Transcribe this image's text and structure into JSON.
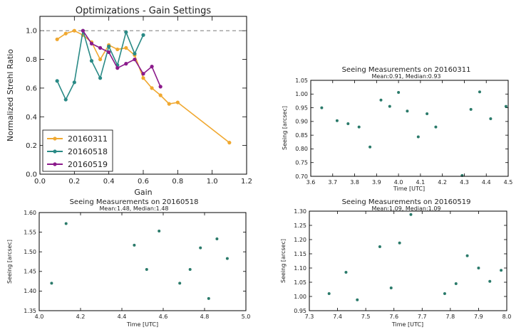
{
  "colors": {
    "s20160311": "#f0a830",
    "s20160518": "#2a8a86",
    "s20160519": "#8b1a8b",
    "ref_line": "#888888",
    "scatter": "#2a7a6a"
  },
  "chart_data": [
    {
      "id": "gain",
      "type": "line",
      "title": "Optimizations - Gain Settings",
      "xlabel": "Gain",
      "ylabel": "Normalized Strehl Ratio",
      "xlim": [
        0.0,
        1.2
      ],
      "ylim": [
        0.0,
        1.1
      ],
      "xticks": [
        0.0,
        0.2,
        0.4,
        0.6,
        0.8,
        1.0,
        1.2
      ],
      "xtick_labels": [
        "0.0",
        "0.2",
        "0.4",
        "0.6",
        "0.8",
        "1.0",
        "1.2"
      ],
      "yticks": [
        0.0,
        0.2,
        0.4,
        0.6,
        0.8,
        1.0
      ],
      "ytick_labels": [
        "0.0",
        "0.2",
        "0.4",
        "0.6",
        "0.8",
        "1.0"
      ],
      "reference_line_y": 1.0,
      "legend_position": "lower-left",
      "series": [
        {
          "name": "20160311",
          "colorKey": "s20160311",
          "x": [
            0.1,
            0.15,
            0.2,
            0.25,
            0.3,
            0.35,
            0.4,
            0.45,
            0.5,
            0.55,
            0.6,
            0.65,
            0.7,
            0.75,
            0.8,
            1.1
          ],
          "y": [
            0.94,
            0.98,
            1.0,
            0.97,
            0.92,
            0.8,
            0.9,
            0.87,
            0.88,
            0.83,
            0.67,
            0.6,
            0.55,
            0.49,
            0.5,
            0.22
          ]
        },
        {
          "name": "20160518",
          "colorKey": "s20160518",
          "x": [
            0.1,
            0.15,
            0.2,
            0.25,
            0.3,
            0.35,
            0.4,
            0.45,
            0.5,
            0.55,
            0.6
          ],
          "y": [
            0.65,
            0.52,
            0.64,
            1.0,
            0.79,
            0.67,
            0.89,
            0.76,
            0.99,
            0.84,
            0.97
          ]
        },
        {
          "name": "20160519",
          "colorKey": "s20160519",
          "x": [
            0.25,
            0.3,
            0.35,
            0.4,
            0.45,
            0.5,
            0.55,
            0.6,
            0.65,
            0.7
          ],
          "y": [
            1.0,
            0.91,
            0.88,
            0.85,
            0.74,
            0.77,
            0.8,
            0.7,
            0.75,
            0.61
          ]
        }
      ]
    },
    {
      "id": "seeing_20160311",
      "type": "scatter",
      "title": "Seeing Measurements on 20160311",
      "subtitle": "Mean:0.91, Median:0.93",
      "xlabel": "Time [UTC]",
      "ylabel": "Seeing [arcsec]",
      "xlim": [
        3.6,
        4.5
      ],
      "ylim": [
        0.7,
        1.05
      ],
      "xticks": [
        3.6,
        3.7,
        3.8,
        3.9,
        4.0,
        4.1,
        4.2,
        4.3,
        4.4,
        4.5
      ],
      "xtick_labels": [
        "3.6",
        "3.7",
        "3.8",
        "3.9",
        "4.0",
        "4.1",
        "4.2",
        "4.3",
        "4.4",
        "4.5"
      ],
      "yticks": [
        0.7,
        0.75,
        0.8,
        0.85,
        0.9,
        0.95,
        1.0,
        1.05
      ],
      "ytick_labels": [
        "0.70",
        "0.75",
        "0.80",
        "0.85",
        "0.90",
        "0.95",
        "1.00",
        "1.05"
      ],
      "x": [
        3.65,
        3.72,
        3.77,
        3.82,
        3.87,
        3.92,
        3.96,
        4.0,
        4.04,
        4.09,
        4.13,
        4.17,
        4.29,
        4.33,
        4.37,
        4.42,
        4.49
      ],
      "y": [
        0.95,
        0.903,
        0.892,
        0.88,
        0.807,
        0.978,
        0.955,
        1.006,
        0.938,
        0.844,
        0.928,
        0.88,
        0.703,
        0.944,
        1.008,
        0.91,
        0.955
      ]
    },
    {
      "id": "seeing_20160518",
      "type": "scatter",
      "title": "Seeing Measurements on 20160518",
      "subtitle": "Mean:1.48, Median:1.48",
      "xlabel": "Time [UTC]",
      "ylabel": "Seeing [arcsec]",
      "xlim": [
        4.0,
        5.0
      ],
      "ylim": [
        1.35,
        1.6
      ],
      "xticks": [
        4.0,
        4.2,
        4.4,
        4.6,
        4.8,
        5.0
      ],
      "xtick_labels": [
        "4.0",
        "4.2",
        "4.4",
        "4.6",
        "4.8",
        "5.0"
      ],
      "yticks": [
        1.35,
        1.4,
        1.45,
        1.5,
        1.55,
        1.6
      ],
      "ytick_labels": [
        "1.35",
        "1.40",
        "1.45",
        "1.50",
        "1.55",
        "1.60"
      ],
      "x": [
        4.06,
        4.13,
        4.46,
        4.52,
        4.58,
        4.68,
        4.73,
        4.78,
        4.82,
        4.86,
        4.91
      ],
      "y": [
        1.42,
        1.572,
        1.517,
        1.455,
        1.553,
        1.42,
        1.455,
        1.51,
        1.381,
        1.533,
        1.483
      ]
    },
    {
      "id": "seeing_20160519",
      "type": "scatter",
      "title": "Seeing Measurements on 20160519",
      "subtitle": "Mean:1.09, Median:1.09",
      "xlabel": "Time [UTC]",
      "ylabel": "Seeing [arcsec]",
      "xlim": [
        7.3,
        8.0
      ],
      "ylim": [
        0.95,
        1.3
      ],
      "xticks": [
        7.3,
        7.4,
        7.5,
        7.6,
        7.7,
        7.8,
        7.9,
        8.0
      ],
      "xtick_labels": [
        "7.3",
        "7.4",
        "7.5",
        "7.6",
        "7.7",
        "7.8",
        "7.9",
        "8.0"
      ],
      "yticks": [
        0.95,
        1.0,
        1.05,
        1.1,
        1.15,
        1.2,
        1.25,
        1.3
      ],
      "ytick_labels": [
        "0.95",
        "1.00",
        "1.05",
        "1.10",
        "1.15",
        "1.20",
        "1.25",
        "1.30"
      ],
      "x": [
        7.37,
        7.43,
        7.47,
        7.55,
        7.59,
        7.62,
        7.66,
        7.78,
        7.82,
        7.86,
        7.9,
        7.94,
        7.98
      ],
      "y": [
        1.01,
        1.085,
        0.988,
        1.175,
        1.03,
        1.188,
        1.288,
        1.01,
        1.045,
        1.143,
        1.1,
        1.053,
        1.092
      ]
    }
  ]
}
